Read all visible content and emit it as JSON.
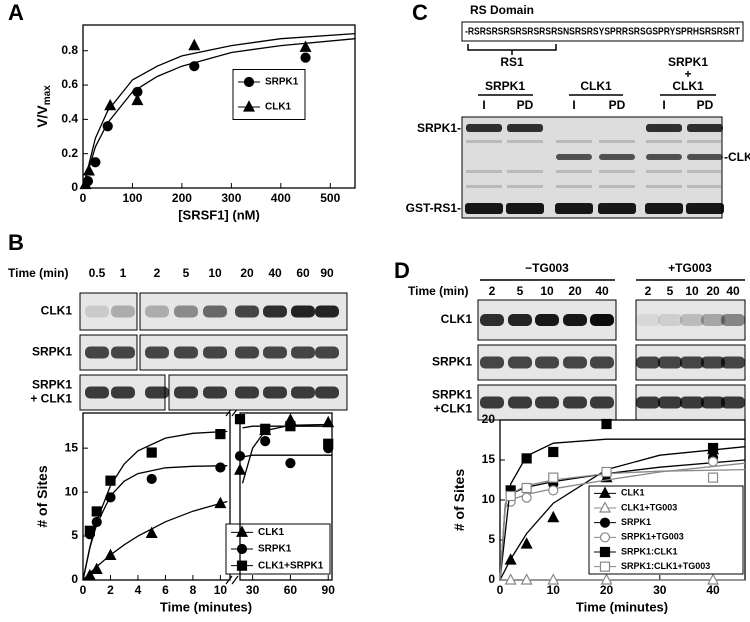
{
  "panel_labels": {
    "a": "A",
    "b": "B",
    "c": "C",
    "d": "D"
  },
  "panel_c": {
    "domain_title": "RS Domain",
    "sequence": "-RSRSRSRSRSRSRSRSNSRSRSYSPRRSRSGSPRYSPRHSRSRSRT",
    "fragment": "RS1",
    "groups": [
      {
        "lines": [
          "SRPK1"
        ],
        "lanes": [
          "I",
          "PD"
        ]
      },
      {
        "lines": [
          "CLK1"
        ],
        "lanes": [
          "I",
          "PD"
        ]
      },
      {
        "lines": [
          "SRPK1",
          "+",
          "CLK1"
        ],
        "lanes": [
          "I",
          "PD"
        ]
      }
    ],
    "band_labels": {
      "left_top": "SRPK1-",
      "left_bottom": "GST-RS1-",
      "right": "-CLK1"
    }
  },
  "gel_b": {
    "time_label": "Time (min)",
    "times": [
      "0.5",
      "1",
      "2",
      "5",
      "10",
      "20",
      "40",
      "60",
      "90"
    ],
    "rows": [
      [
        "CLK1"
      ],
      [
        "SRPK1"
      ],
      [
        "SRPK1",
        "+ CLK1"
      ]
    ]
  },
  "gel_d": {
    "conditions": [
      "−TG003",
      "+TG003"
    ],
    "time_label": "Time (min)",
    "times": [
      "2",
      "5",
      "10",
      "20",
      "40",
      "2",
      "5",
      "10",
      "20",
      "40"
    ],
    "rows": [
      [
        "CLK1"
      ],
      [
        "SRPK1"
      ],
      [
        "SRPK1",
        "+CLK1"
      ]
    ]
  },
  "chart_data": [
    {
      "type": "scatter",
      "xlabel": "[SRSF1] (nM)",
      "ylabel": "V/V",
      "ylabel_sub": "max",
      "xlim": [
        0,
        550
      ],
      "xticks": [
        0,
        100,
        200,
        300,
        400,
        500
      ],
      "ylim": [
        0,
        0.95
      ],
      "yticks": [
        0,
        0.2,
        0.4,
        0.6,
        0.8
      ],
      "legend": "center right",
      "series": [
        {
          "name": "SRPK1",
          "color": "#000000",
          "marker": "circle",
          "filled": true,
          "x": [
            10,
            25,
            50,
            110,
            225,
            450
          ],
          "values": [
            0.04,
            0.15,
            0.36,
            0.56,
            0.71,
            0.76
          ],
          "fit_x": [
            0,
            25,
            50,
            100,
            150,
            200,
            300,
            400,
            550
          ],
          "fit_values": [
            0,
            0.24,
            0.38,
            0.56,
            0.65,
            0.71,
            0.79,
            0.83,
            0.87
          ]
        },
        {
          "name": "CLK1",
          "color": "#000000",
          "marker": "triangle",
          "filled": true,
          "x": [
            5,
            12,
            55,
            110,
            225,
            450
          ],
          "values": [
            0.02,
            0.1,
            0.48,
            0.51,
            0.83,
            0.82
          ],
          "fit_x": [
            0,
            25,
            50,
            100,
            150,
            200,
            300,
            400,
            550
          ],
          "fit_values": [
            0,
            0.29,
            0.45,
            0.63,
            0.71,
            0.77,
            0.83,
            0.87,
            0.9
          ]
        }
      ]
    },
    {
      "type": "scatter",
      "xlabel": "Time (minutes)",
      "ylabel": "# of Sites",
      "xlim": [
        0,
        10.7
      ],
      "xticks": [
        0,
        2,
        4,
        6,
        8,
        10
      ],
      "ylim": [
        0,
        19
      ],
      "yticks": [
        0,
        5,
        10,
        15
      ],
      "legend": "lower right",
      "series": [
        {
          "name": "CLK1",
          "color": "#000000",
          "marker": "triangle",
          "filled": true,
          "x": [
            0.5,
            1,
            2,
            5,
            10
          ],
          "values": [
            0.5,
            1.2,
            2.8,
            5.3,
            8.7
          ],
          "fit_x": [
            0,
            0.5,
            1,
            2,
            3,
            4,
            6,
            8,
            10.5
          ],
          "fit_values": [
            0,
            0.79,
            1.53,
            2.86,
            4.01,
            5.0,
            6.62,
            7.83,
            8.93
          ]
        },
        {
          "name": "SRPK1",
          "color": "#000000",
          "marker": "circle",
          "filled": true,
          "x": [
            0.5,
            1,
            2,
            5,
            10
          ],
          "values": [
            5.2,
            6.6,
            9.4,
            11.5,
            12.8
          ],
          "fit_x": [
            0,
            0.5,
            1,
            2,
            3,
            4,
            6,
            8,
            10.5
          ],
          "fit_values": [
            0,
            3.68,
            6.33,
            9.57,
            11.24,
            12.1,
            12.76,
            12.94,
            13.0
          ]
        },
        {
          "name": "CLK1+SRPK1",
          "color": "#000000",
          "marker": "square",
          "filled": true,
          "x": [
            0.5,
            1,
            2,
            5,
            10
          ],
          "values": [
            5.6,
            7.8,
            11.3,
            14.5,
            16.6
          ],
          "fit_x": [
            0,
            0.5,
            1,
            2,
            3,
            4,
            6,
            8,
            10.5
          ],
          "fit_values": [
            0,
            3.76,
            6.69,
            10.75,
            13.2,
            14.7,
            16.15,
            16.69,
            16.91
          ]
        }
      ]
    },
    {
      "type": "scatter",
      "xlim": [
        20,
        93
      ],
      "xticks": [
        30,
        60,
        90
      ],
      "ylim": [
        0,
        19
      ],
      "series": [
        {
          "color": "#000000",
          "marker": "triangle",
          "filled": true,
          "x": [
            20,
            40,
            60,
            90
          ],
          "values": [
            12.5,
            17,
            18.2,
            17.9
          ],
          "fit_x": [
            22,
            30,
            40,
            60,
            93
          ],
          "fit_values": [
            11,
            15,
            17,
            17.6,
            17.7
          ]
        },
        {
          "color": "#000000",
          "marker": "circle",
          "filled": true,
          "x": [
            20,
            40,
            60,
            90
          ],
          "values": [
            14.1,
            15.8,
            13.3,
            15
          ],
          "fit_x": [
            22,
            30,
            40,
            60,
            93
          ],
          "fit_values": [
            14.0,
            14.2,
            14.2,
            14.2,
            14.2
          ]
        },
        {
          "color": "#000000",
          "marker": "square",
          "filled": true,
          "x": [
            20,
            40,
            60,
            90
          ],
          "values": [
            18.3,
            17.2,
            17.5,
            15.5
          ],
          "fit_x": [
            22,
            30,
            40,
            60,
            93
          ],
          "fit_values": [
            17.3,
            17.5,
            17.5,
            17.5,
            17.5
          ]
        }
      ]
    },
    {
      "type": "scatter",
      "xlabel": "Time (minutes)",
      "ylabel": "# of Sites",
      "xlim": [
        0,
        46
      ],
      "xticks": [
        0,
        10,
        20,
        30,
        40
      ],
      "ylim": [
        0,
        20
      ],
      "yticks": [
        0,
        5,
        10,
        15,
        20
      ],
      "legend": "lower right",
      "series": [
        {
          "name": "CLK1",
          "color": "#000000",
          "marker": "triangle",
          "filled": true,
          "x": [
            2,
            5,
            10,
            20,
            40
          ],
          "values": [
            2.5,
            4.5,
            7.8,
            12.8,
            16.3
          ],
          "fit_x": [
            0,
            2,
            5,
            10,
            20,
            30,
            46
          ],
          "fit_values": [
            0,
            2.61,
            5.8,
            9.6,
            13.8,
            15.6,
            16.66
          ]
        },
        {
          "name": "CLK1+TG003",
          "color": "#888888",
          "marker": "triangle",
          "filled": false,
          "x": [
            2,
            5,
            10,
            20,
            40
          ],
          "values": [
            0,
            0,
            0,
            0,
            0
          ],
          "fit_x": [
            0,
            46
          ],
          "fit_values": [
            0,
            0
          ]
        },
        {
          "name": "SRPK1",
          "color": "#000000",
          "marker": "circle",
          "filled": true,
          "x": [
            2,
            5,
            10,
            20,
            40
          ],
          "values": [
            11,
            11.5,
            12,
            13.2,
            15.3
          ],
          "fit_x": [
            0,
            1,
            2,
            5,
            10,
            20,
            30,
            46
          ],
          "fit_values": [
            0,
            9.5,
            10.8,
            11.6,
            12.3,
            13.3,
            14.1,
            15.0
          ]
        },
        {
          "name": "SRPK1+TG003",
          "color": "#888888",
          "marker": "circle",
          "filled": false,
          "x": [
            2,
            5,
            10,
            20,
            40
          ],
          "values": [
            9.8,
            10.3,
            11.2,
            10.8,
            14.8
          ],
          "fit_x": [
            0,
            1,
            2,
            5,
            10,
            20,
            30,
            46
          ],
          "fit_values": [
            0,
            9,
            10,
            10.7,
            11.4,
            12.5,
            13.5,
            14.6
          ]
        },
        {
          "name": "SRPK1:CLK1",
          "color": "#000000",
          "marker": "square",
          "filled": true,
          "x": [
            2,
            5,
            10,
            20,
            40
          ],
          "values": [
            11.2,
            15.2,
            16,
            19.5,
            16.5
          ],
          "fit_x": [
            0,
            2,
            5,
            10,
            20,
            30,
            46
          ],
          "fit_values": [
            0,
            12,
            15.5,
            17.1,
            17.6,
            17.6,
            17.6
          ]
        },
        {
          "name": "SRPK1:CLK1+TG003",
          "color": "#888888",
          "marker": "square",
          "filled": false,
          "x": [
            2,
            5,
            10,
            20,
            40
          ],
          "values": [
            10.5,
            11.5,
            12.8,
            13.5,
            12.8
          ],
          "fit_x": [
            0,
            1,
            2,
            5,
            10,
            20,
            30,
            46
          ],
          "fit_values": [
            0,
            9.5,
            10.8,
            11.8,
            12.5,
            13.3,
            13.6,
            13.8
          ]
        }
      ]
    }
  ]
}
